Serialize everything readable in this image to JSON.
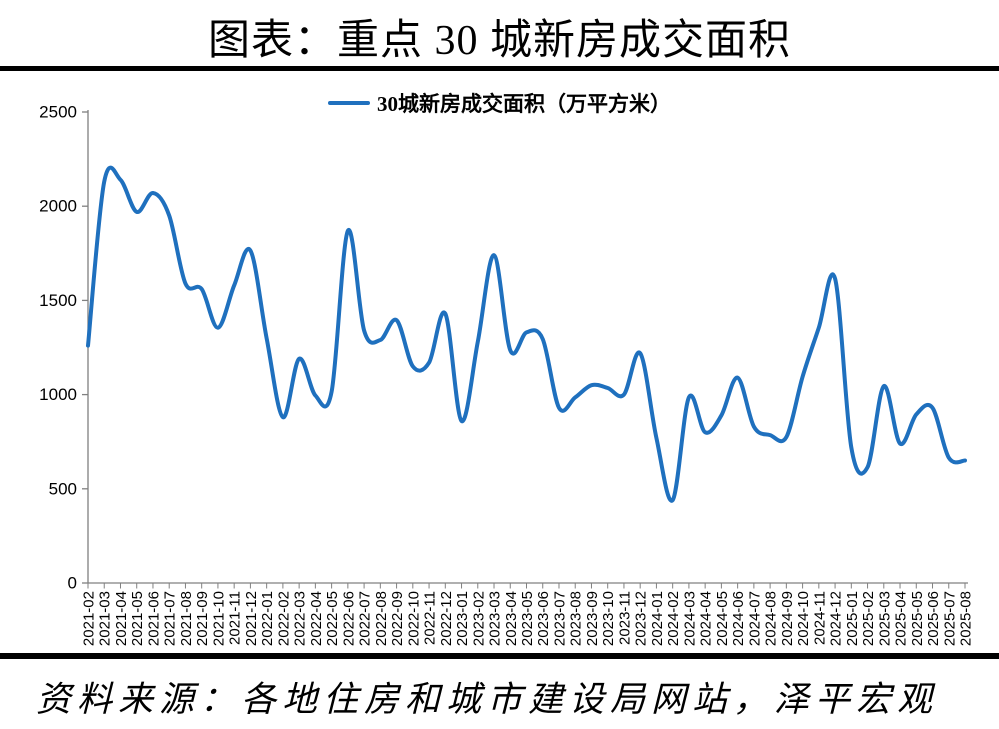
{
  "title": "图表：重点 30 城新房成交面积",
  "source": "资料来源：各地住房和城市建设局网站，泽平宏观",
  "colors": {
    "line": "#1F70BE",
    "axis": "#808080",
    "tick_label": "#000000",
    "divider": "#000000"
  },
  "chart_data": {
    "type": "line",
    "title": "图表：重点 30 城新房成交面积",
    "legend_position": "top",
    "grid": false,
    "smooth": true,
    "ylim": [
      0,
      2500
    ],
    "yticks": [
      0,
      500,
      1000,
      1500,
      2000,
      2500
    ],
    "x": [
      "2021-02",
      "2021-03",
      "2021-04",
      "2021-05",
      "2021-06",
      "2021-07",
      "2021-08",
      "2021-09",
      "2021-10",
      "2021-11",
      "2021-12",
      "2022-01",
      "2022-02",
      "2022-03",
      "2022-04",
      "2022-05",
      "2022-06",
      "2022-07",
      "2022-08",
      "2022-09",
      "2022-10",
      "2022-11",
      "2022-12",
      "2023-01",
      "2023-02",
      "2023-03",
      "2023-04",
      "2023-05",
      "2023-06",
      "2023-07",
      "2023-08",
      "2023-09",
      "2023-10",
      "2023-11",
      "2023-12",
      "2024-01",
      "2024-02",
      "2024-03",
      "2024-04",
      "2024-05",
      "2024-06",
      "2024-07",
      "2024-08",
      "2024-09",
      "2024-10",
      "2024-11",
      "2024-12",
      "2025-01",
      "2025-02",
      "2025-03",
      "2025-04",
      "2025-05",
      "2025-06",
      "2025-07",
      "2025-08"
    ],
    "series": [
      {
        "name": "30城新房成交面积（万平方米）",
        "values": [
          1260,
          2130,
          2140,
          1970,
          2070,
          1950,
          1590,
          1560,
          1355,
          1580,
          1765,
          1300,
          880,
          1190,
          995,
          1015,
          1870,
          1340,
          1290,
          1395,
          1150,
          1170,
          1430,
          860,
          1280,
          1740,
          1235,
          1330,
          1295,
          930,
          985,
          1050,
          1035,
          1000,
          1220,
          770,
          440,
          985,
          800,
          890,
          1090,
          830,
          785,
          775,
          1095,
          1355,
          1615,
          720,
          615,
          1045,
          740,
          895,
          930,
          665,
          650
        ]
      }
    ]
  }
}
